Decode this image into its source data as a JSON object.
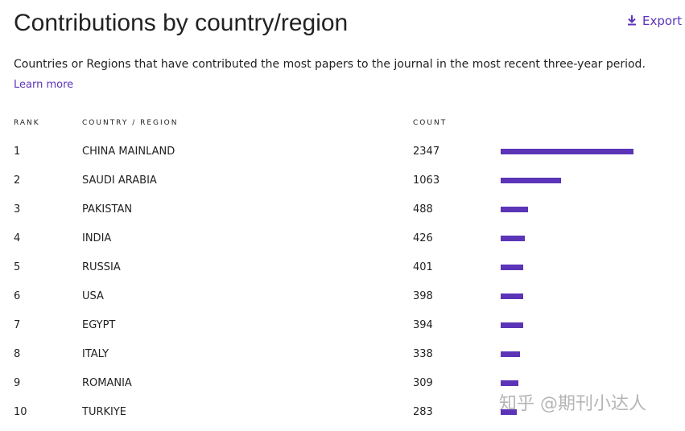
{
  "header": {
    "title": "Contributions by country/region",
    "export": "Export",
    "description": "Countries or Regions that have contributed the most papers to the journal in the most recent three-year period.",
    "learn_more": "Learn more"
  },
  "table": {
    "columns": [
      "RANK",
      "COUNTRY / REGION",
      "COUNT"
    ],
    "bar_color": "#5b34b8",
    "rows": [
      [
        1,
        "CHINA MAINLAND",
        2347
      ],
      [
        2,
        "SAUDI ARABIA",
        1063
      ],
      [
        3,
        "PAKISTAN",
        488
      ],
      [
        4,
        "INDIA",
        426
      ],
      [
        5,
        "RUSSIA",
        401
      ],
      [
        6,
        "USA",
        398
      ],
      [
        7,
        "EGYPT",
        394
      ],
      [
        8,
        "ITALY",
        338
      ],
      [
        9,
        "ROMANIA",
        309
      ],
      [
        10,
        "TURKIYE",
        283
      ]
    ]
  },
  "watermark": "知乎 @期刊小达人"
}
